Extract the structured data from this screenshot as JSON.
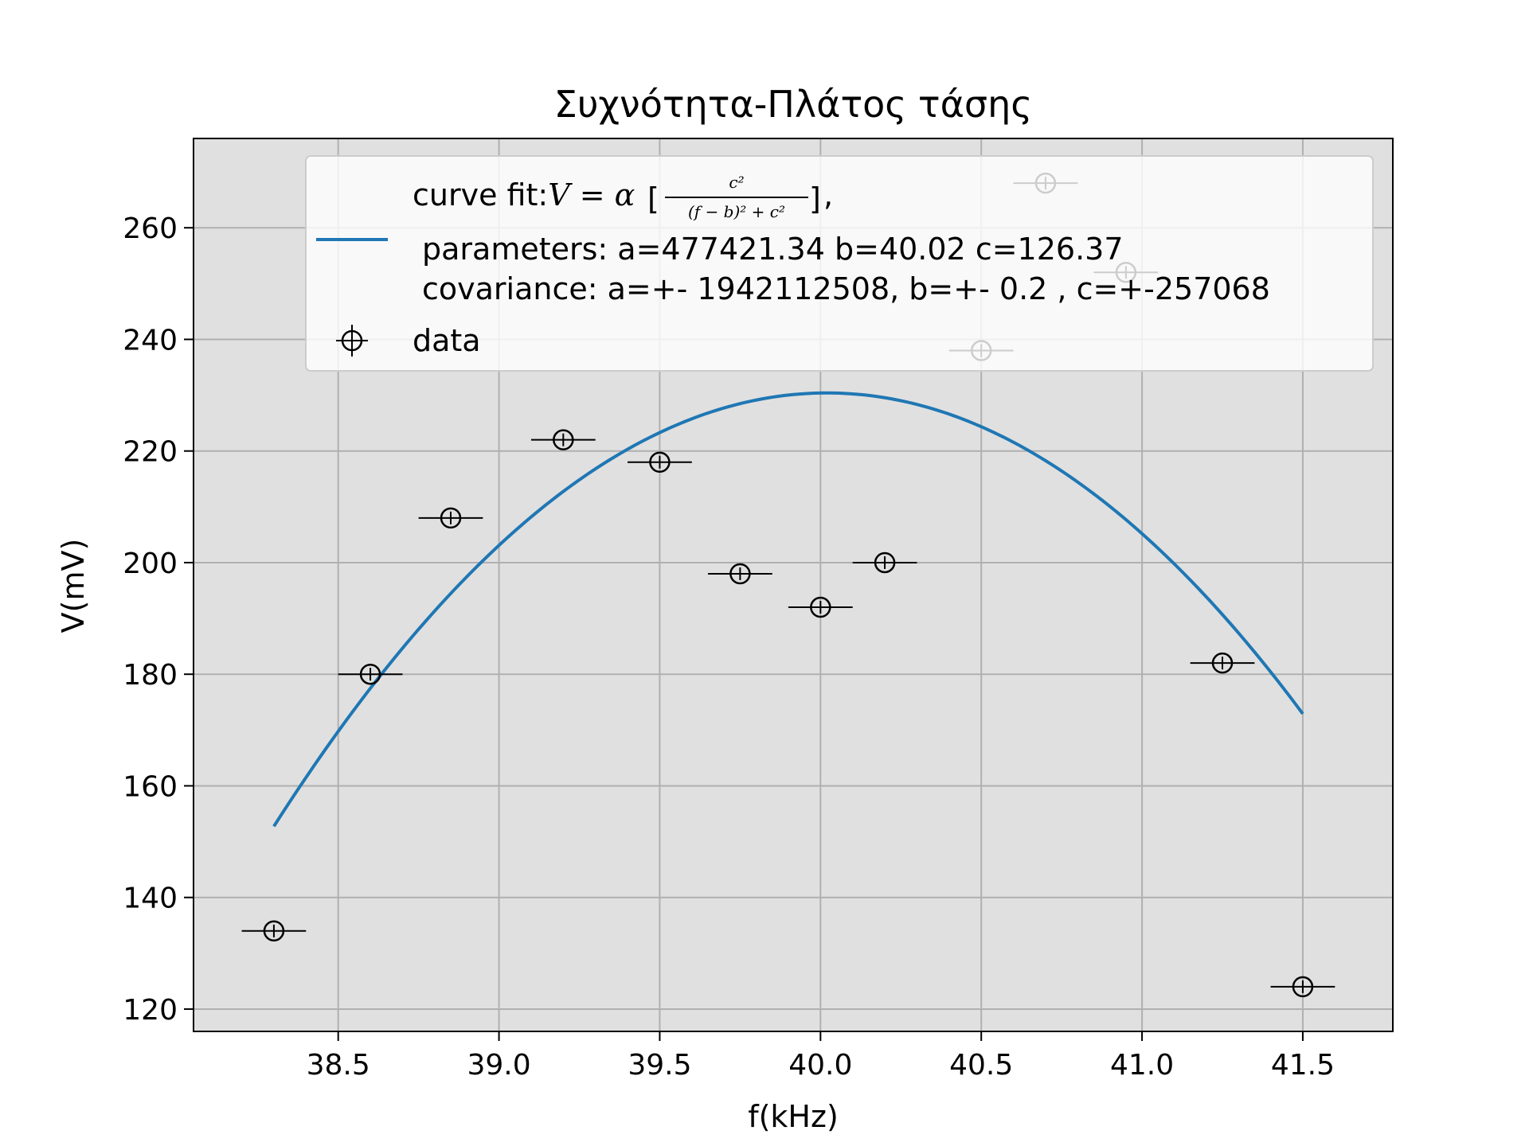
{
  "chart_data": {
    "type": "scatter",
    "title": "Συχνότητα-Πλάτος τάσης",
    "xlabel": "f(kHz)",
    "ylabel": "V(mV)",
    "xlim": [
      38.05,
      41.78
    ],
    "ylim": [
      116,
      276
    ],
    "x_ticks": [
      "38.5",
      "39.0",
      "39.5",
      "40.0",
      "40.5",
      "41.0",
      "41.5"
    ],
    "y_ticks": [
      "120",
      "140",
      "160",
      "180",
      "200",
      "220",
      "240",
      "260"
    ],
    "grid": true,
    "legend_position": "top-right",
    "series": [
      {
        "name": "data",
        "kind": "errorbar",
        "color": "#000000",
        "x_error": 0.1,
        "points": [
          {
            "x": 38.3,
            "y": 134
          },
          {
            "x": 38.6,
            "y": 180
          },
          {
            "x": 38.85,
            "y": 208
          },
          {
            "x": 39.2,
            "y": 222
          },
          {
            "x": 39.5,
            "y": 218
          },
          {
            "x": 39.75,
            "y": 198
          },
          {
            "x": 40.0,
            "y": 192
          },
          {
            "x": 40.2,
            "y": 200
          },
          {
            "x": 40.5,
            "y": 238
          },
          {
            "x": 40.7,
            "y": 268
          },
          {
            "x": 40.95,
            "y": 252
          },
          {
            "x": 41.25,
            "y": 182
          },
          {
            "x": 41.5,
            "y": 124
          }
        ]
      },
      {
        "name": "curve fit",
        "kind": "line",
        "color": "#1f77b4",
        "a": 477421.34,
        "b": 40.02,
        "c": 126.37,
        "x_range": [
          38.3,
          41.5
        ]
      }
    ],
    "legend": {
      "fit_prefix": "curve fit:",
      "fit_formula_lhs": "V = α",
      "fit_formula_num": "c²",
      "fit_formula_den": "(f − b)² +  c²",
      "fit_formula_suffix": ",",
      "fit_params": "parameters: a=477421.34 b=40.02 c=126.37",
      "fit_cov": "covariance: a=+- 1942112508, b=+- 0.2 , c=+-257068",
      "data_label": "data"
    }
  }
}
